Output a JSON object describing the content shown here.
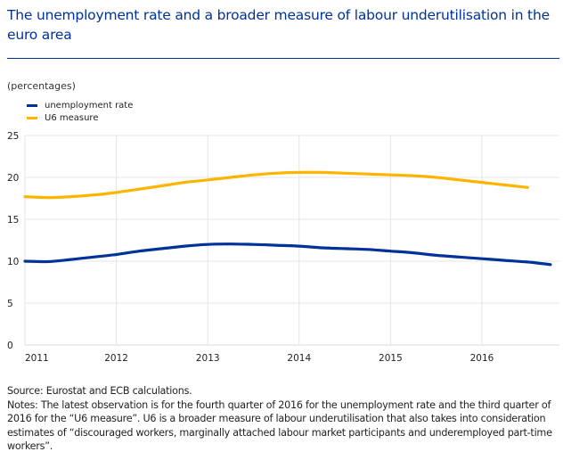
{
  "title": "The unemployment rate and a broader measure of labour underutilisation in the euro area",
  "units": "(percentages)",
  "source": "Source: Eurostat and ECB calculations.",
  "notes": "Notes: The latest observation is for the fourth quarter of 2016 for the unemployment rate and the third quarter of 2016 for the “U6 measure”. U6 is a broader measure of labour underutilisation that also takes into consideration estimates of “discouraged workers, marginally attached labour market participants and underemployed part-time workers”.",
  "colors": {
    "title": "#003299",
    "grid": "#e4e4e4",
    "axis": "#d9d9d9"
  },
  "chart_data": {
    "type": "line",
    "title": "The unemployment rate and a broader measure of labour underutilisation in the euro area",
    "xlabel": "",
    "ylabel": "(percentages)",
    "x_ticks": [
      "2011",
      "2012",
      "2013",
      "2014",
      "2015",
      "2016"
    ],
    "y_ticks": [
      0,
      5,
      10,
      15,
      20,
      25
    ],
    "ylim": [
      0,
      25
    ],
    "xlim": [
      2011.0,
      2016.85
    ],
    "grid": true,
    "legend": "top-left",
    "x": [
      2011.0,
      2011.25,
      2011.5,
      2011.75,
      2012.0,
      2012.25,
      2012.5,
      2012.75,
      2013.0,
      2013.25,
      2013.5,
      2013.75,
      2014.0,
      2014.25,
      2014.5,
      2014.75,
      2015.0,
      2015.25,
      2015.5,
      2015.75,
      2016.0,
      2016.25,
      2016.5,
      2016.75
    ],
    "series": [
      {
        "name": "unemployment rate",
        "color": "#003299",
        "values": [
          10.0,
          9.95,
          10.2,
          10.5,
          10.8,
          11.2,
          11.5,
          11.8,
          12.0,
          12.05,
          12.0,
          11.9,
          11.8,
          11.6,
          11.5,
          11.4,
          11.2,
          11.0,
          10.7,
          10.5,
          10.3,
          10.1,
          9.9,
          9.6
        ]
      },
      {
        "name": "U6 measure",
        "color": "#ffb400",
        "values": [
          17.7,
          17.6,
          17.7,
          17.9,
          18.2,
          18.6,
          19.0,
          19.4,
          19.7,
          20.0,
          20.3,
          20.5,
          20.6,
          20.6,
          20.5,
          20.4,
          20.3,
          20.2,
          20.0,
          19.7,
          19.4,
          19.1,
          18.8
        ]
      }
    ]
  }
}
